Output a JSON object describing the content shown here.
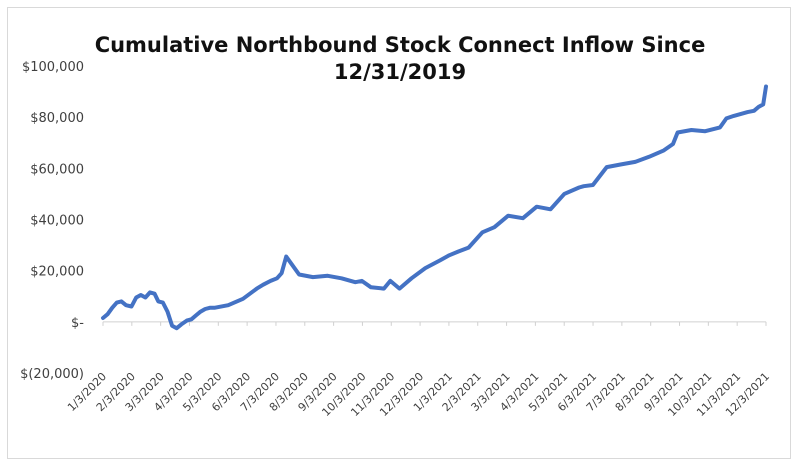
{
  "chart_data": {
    "type": "line",
    "title_lines": [
      "Cumulative Northbound Stock Connect Inflow Since",
      "12/31/2019"
    ],
    "xlabel": "",
    "ylabel": "",
    "ylim": [
      -20000,
      100000
    ],
    "y_ticks": [
      {
        "value": 100000,
        "label": "$100,000"
      },
      {
        "value": 80000,
        "label": "$80,000"
      },
      {
        "value": 60000,
        "label": "$60,000"
      },
      {
        "value": 40000,
        "label": "$40,000"
      },
      {
        "value": 20000,
        "label": "$20,000"
      },
      {
        "value": 0,
        "label": "$-"
      },
      {
        "value": -20000,
        "label": "$(20,000)"
      }
    ],
    "x_ticks": [
      "1/3/2020",
      "2/3/2020",
      "3/3/2020",
      "4/3/2020",
      "5/3/2020",
      "6/3/2020",
      "7/3/2020",
      "8/3/2020",
      "9/3/2020",
      "10/3/2020",
      "11/3/2020",
      "12/3/2020",
      "1/3/2021",
      "2/3/2021",
      "3/3/2021",
      "4/3/2021",
      "5/3/2021",
      "6/3/2021",
      "7/3/2021",
      "8/3/2021",
      "9/3/2021",
      "10/3/2021",
      "11/3/2021",
      "12/3/2021"
    ],
    "grid": false,
    "legend": "none",
    "line_color": "#4472c4",
    "series": [
      {
        "x": [
          "2020-01-03",
          "2020-01-08",
          "2020-01-13",
          "2020-01-18",
          "2020-01-23",
          "2020-01-28",
          "2020-02-03",
          "2020-02-08",
          "2020-02-13",
          "2020-02-18",
          "2020-02-23",
          "2020-02-28",
          "2020-03-03",
          "2020-03-08",
          "2020-03-13",
          "2020-03-18",
          "2020-03-23",
          "2020-03-28",
          "2020-04-03",
          "2020-04-08",
          "2020-04-13",
          "2020-04-18",
          "2020-04-23",
          "2020-04-28",
          "2020-05-03",
          "2020-05-18",
          "2020-06-03",
          "2020-06-18",
          "2020-06-25",
          "2020-07-03",
          "2020-07-10",
          "2020-07-15",
          "2020-07-20",
          "2020-08-03",
          "2020-08-18",
          "2020-09-03",
          "2020-09-18",
          "2020-10-03",
          "2020-10-10",
          "2020-10-20",
          "2020-11-03",
          "2020-11-10",
          "2020-11-20",
          "2020-12-03",
          "2020-12-18",
          "2021-01-03",
          "2021-01-13",
          "2021-01-23",
          "2021-02-03",
          "2021-02-18",
          "2021-03-03",
          "2021-03-18",
          "2021-04-03",
          "2021-04-18",
          "2021-05-03",
          "2021-05-18",
          "2021-06-03",
          "2021-06-08",
          "2021-06-18",
          "2021-07-03",
          "2021-07-18",
          "2021-08-03",
          "2021-08-18",
          "2021-09-03",
          "2021-09-13",
          "2021-09-18",
          "2021-10-03",
          "2021-10-18",
          "2021-11-03",
          "2021-11-10",
          "2021-11-18",
          "2021-12-03",
          "2021-12-10",
          "2021-12-15",
          "2021-12-20",
          "2021-12-23"
        ],
        "values": [
          1500,
          3000,
          5500,
          7500,
          8000,
          6500,
          6000,
          9500,
          10500,
          9500,
          11500,
          11000,
          8000,
          7500,
          4000,
          -1500,
          -2500,
          -1000,
          500,
          1000,
          2500,
          4000,
          5000,
          5500,
          5500,
          6500,
          9000,
          13000,
          14500,
          16000,
          17000,
          19000,
          25500,
          18500,
          17500,
          18000,
          17000,
          15500,
          16000,
          13500,
          13000,
          16000,
          13000,
          17000,
          21000,
          24000,
          26000,
          27500,
          29000,
          35000,
          37000,
          41500,
          40500,
          45000,
          44000,
          50000,
          52500,
          53000,
          53500,
          60500,
          61500,
          62500,
          64500,
          67000,
          69500,
          74000,
          75000,
          74500,
          76000,
          79500,
          80500,
          82000,
          82500,
          84000,
          85000,
          92000
        ]
      }
    ]
  }
}
